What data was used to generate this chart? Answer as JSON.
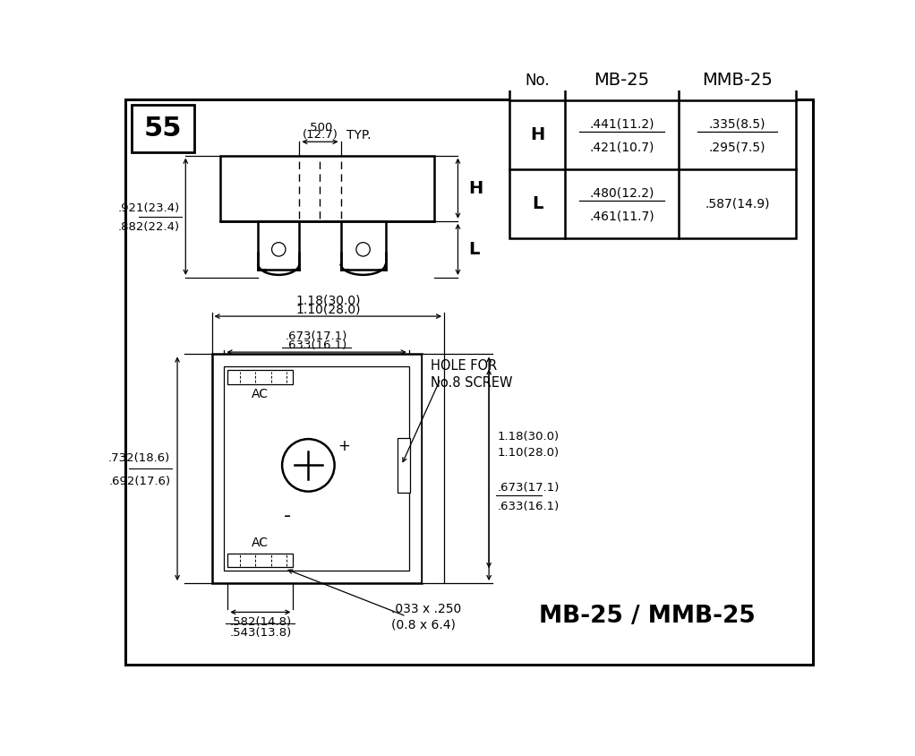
{
  "page_number": "55",
  "model_name": "MB-25 / MMB-25",
  "bg_color": "#ffffff",
  "table_headers": [
    "No.",
    "MB-25",
    "MMB-25"
  ],
  "table_row_H_mb25_top": ".441(11.2)",
  "table_row_H_mb25_bot": ".421(10.7)",
  "table_row_H_mmb25_top": ".335(8.5)",
  "table_row_H_mmb25_bot": ".295(7.5)",
  "table_row_L_mb25_top": ".480(12.2)",
  "table_row_L_mb25_bot": ".461(11.7)",
  "table_row_L_mmb25": ".587(14.9)",
  "dim_500": ".500",
  "dim_127": "(12.7)",
  "typ": "TYP.",
  "dim_921": ".921(23.4)",
  "dim_882": ".882(22.4)",
  "dim_118a": "1.18(30.0)",
  "dim_110a": "1.10(28.0)",
  "dim_673a": ".673(17.1)",
  "dim_633a": ".633(16.1)",
  "hole_for": "HOLE FOR",
  "no8screw": "No.8 SCREW",
  "dim_732": ".732(18.6)",
  "dim_692": ".692(17.6)",
  "dim_118b": "1.18(30.0)",
  "dim_110b": "1.10(28.0)",
  "dim_673b": ".673(17.1)",
  "dim_633b": ".633(16.1)",
  "dim_582": ".582(14.8)",
  "dim_543": ".543(13.8)",
  "dim_pin1": ".033 x .250",
  "dim_pin2": "(0.8 x 6.4)",
  "label_AC": "AC",
  "label_plus": "+",
  "label_minus": "-",
  "label_H": "H",
  "label_L": "L"
}
